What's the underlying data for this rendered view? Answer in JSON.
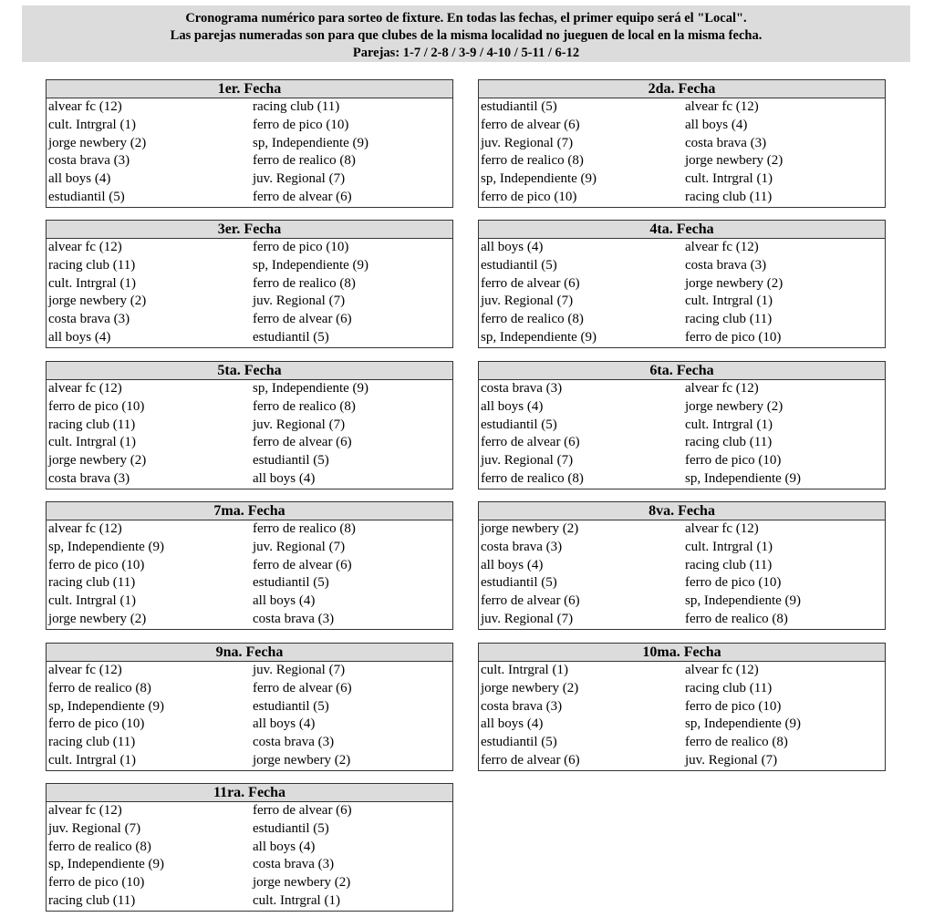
{
  "header": {
    "line1": "Cronograma numérico para sorteo de fixture. En todas las fechas, el primer equipo será el \"Local\".",
    "line2": "Las parejas numeradas son para que clubes de la misma localidad no jueguen de local en la misma fecha.",
    "line3": "Parejas: 1-7 / 2-8 / 3-9 / 4-10 / 5-11 / 6-12"
  },
  "fechas": [
    {
      "title": "1er. Fecha",
      "matches": [
        [
          "alvear fc (12)",
          "racing club (11)"
        ],
        [
          "cult. Intrgral (1)",
          "ferro de pico (10)"
        ],
        [
          "jorge newbery (2)",
          "sp, Independiente (9)"
        ],
        [
          "costa brava (3)",
          "ferro de realico (8)"
        ],
        [
          "all boys (4)",
          "juv. Regional (7)"
        ],
        [
          "estudiantil (5)",
          "ferro de alvear (6)"
        ]
      ]
    },
    {
      "title": "2da. Fecha",
      "matches": [
        [
          "estudiantil (5)",
          "alvear fc (12)"
        ],
        [
          "ferro de alvear (6)",
          "all boys (4)"
        ],
        [
          "juv. Regional (7)",
          "costa brava (3)"
        ],
        [
          "ferro de realico (8)",
          "jorge newbery (2)"
        ],
        [
          "sp, Independiente (9)",
          "cult. Intrgral (1)"
        ],
        [
          "ferro de pico (10)",
          "racing club (11)"
        ]
      ]
    },
    {
      "title": "3er. Fecha",
      "matches": [
        [
          "alvear fc (12)",
          "ferro de pico (10)"
        ],
        [
          "racing club (11)",
          "sp, Independiente (9)"
        ],
        [
          "cult. Intrgral (1)",
          "ferro de realico (8)"
        ],
        [
          "jorge newbery (2)",
          "juv. Regional (7)"
        ],
        [
          "costa brava (3)",
          "ferro de alvear (6)"
        ],
        [
          "all boys (4)",
          "estudiantil (5)"
        ]
      ]
    },
    {
      "title": "4ta. Fecha",
      "matches": [
        [
          "all boys (4)",
          "alvear fc (12)"
        ],
        [
          "estudiantil (5)",
          "costa brava (3)"
        ],
        [
          "ferro de alvear (6)",
          "jorge newbery (2)"
        ],
        [
          "juv. Regional (7)",
          "cult. Intrgral (1)"
        ],
        [
          "ferro de realico (8)",
          "racing club (11)"
        ],
        [
          "sp, Independiente (9)",
          "ferro de pico (10)"
        ]
      ]
    },
    {
      "title": "5ta. Fecha",
      "matches": [
        [
          "alvear fc (12)",
          "sp, Independiente (9)"
        ],
        [
          "ferro de pico (10)",
          "ferro de realico (8)"
        ],
        [
          "racing club (11)",
          "juv. Regional (7)"
        ],
        [
          "cult. Intrgral (1)",
          "ferro de alvear (6)"
        ],
        [
          "jorge newbery (2)",
          "estudiantil (5)"
        ],
        [
          "costa brava (3)",
          "all boys (4)"
        ]
      ]
    },
    {
      "title": "6ta. Fecha",
      "matches": [
        [
          "costa brava (3)",
          "alvear fc (12)"
        ],
        [
          "all boys (4)",
          "jorge newbery (2)"
        ],
        [
          "estudiantil (5)",
          "cult. Intrgral (1)"
        ],
        [
          "ferro de alvear (6)",
          "racing club (11)"
        ],
        [
          "juv. Regional (7)",
          "ferro de pico (10)"
        ],
        [
          "ferro de realico (8)",
          "sp, Independiente (9)"
        ]
      ]
    },
    {
      "title": "7ma. Fecha",
      "matches": [
        [
          "alvear fc (12)",
          "ferro de realico (8)"
        ],
        [
          "sp, Independiente (9)",
          "juv. Regional (7)"
        ],
        [
          "ferro de pico (10)",
          "ferro de alvear (6)"
        ],
        [
          "racing club (11)",
          "estudiantil (5)"
        ],
        [
          "cult. Intrgral (1)",
          "all boys (4)"
        ],
        [
          "jorge newbery (2)",
          "costa brava (3)"
        ]
      ]
    },
    {
      "title": "8va. Fecha",
      "matches": [
        [
          "jorge newbery (2)",
          "alvear fc (12)"
        ],
        [
          "costa brava (3)",
          "cult. Intrgral (1)"
        ],
        [
          "all boys (4)",
          "racing club (11)"
        ],
        [
          "estudiantil (5)",
          "ferro de pico (10)"
        ],
        [
          "ferro de alvear (6)",
          "sp, Independiente (9)"
        ],
        [
          "juv. Regional (7)",
          "ferro de realico (8)"
        ]
      ]
    },
    {
      "title": "9na. Fecha",
      "matches": [
        [
          "alvear fc (12)",
          "juv. Regional (7)"
        ],
        [
          "ferro de realico (8)",
          "ferro de alvear (6)"
        ],
        [
          "sp, Independiente (9)",
          "estudiantil (5)"
        ],
        [
          "ferro de pico (10)",
          "all boys (4)"
        ],
        [
          "racing club (11)",
          "costa brava (3)"
        ],
        [
          "cult. Intrgral (1)",
          "jorge newbery (2)"
        ]
      ]
    },
    {
      "title": "10ma. Fecha",
      "matches": [
        [
          "cult. Intrgral (1)",
          "alvear fc (12)"
        ],
        [
          "jorge newbery (2)",
          "racing club (11)"
        ],
        [
          "costa brava (3)",
          "ferro de pico (10)"
        ],
        [
          "all boys (4)",
          "sp, Independiente (9)"
        ],
        [
          "estudiantil (5)",
          "ferro de realico (8)"
        ],
        [
          "ferro de alvear (6)",
          "juv. Regional (7)"
        ]
      ]
    },
    {
      "title": "11ra. Fecha",
      "matches": [
        [
          "alvear fc (12)",
          "ferro de alvear (6)"
        ],
        [
          "juv. Regional (7)",
          "estudiantil (5)"
        ],
        [
          "ferro de realico (8)",
          "all boys (4)"
        ],
        [
          "sp, Independiente (9)",
          "costa brava (3)"
        ],
        [
          "ferro de pico (10)",
          "jorge newbery (2)"
        ],
        [
          "racing club (11)",
          "cult. Intrgral (1)"
        ]
      ]
    }
  ]
}
